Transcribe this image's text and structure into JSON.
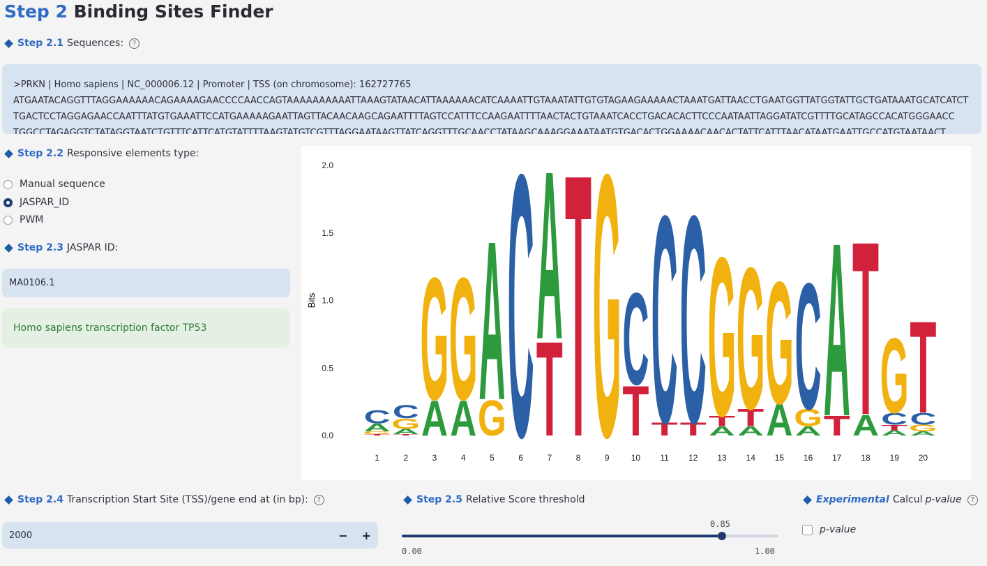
{
  "header": {
    "step": "Step 2",
    "title": "Binding Sites Finder"
  },
  "step21": {
    "step": "Step 2.1",
    "label": "Sequences:",
    "help": "?"
  },
  "sequence": {
    "line1": ">PRKN | Homo sapiens | NC_000006.12 | Promoter | TSS (on chromosome): 162727765",
    "line2": "ATGAATACAGGTTTAGGAAAAAACAGAAAAGAACCCCAACCAGTAAAAAAAAAATTAAAGTATAACATTAAAAAACATCAAAATTGTAAATATTGTGTAGAAGAAAAACTAAATGATTAACCTGAATGGTTATGGTATTGCTGATAAATGCATCATCT",
    "line3": "TGACTCCTAGGAGAACCAATTTATGTGAAATTCCATGAAAAAGAATTAGTTACAACAAGCAGAATTTTAGTCCATTTCCAAGAATTTTAACTACTGTAAATCACCTGACACACTTCCCAATAATTAGGATATCGTTTTGCATAGCCACATGGGAACC",
    "line4": "TGGCCTAGAGGTCTATAGGTAATCTGTTTCATTCATGTATTTTAAGTATGTCGTTTAGGAATAAGTTATCAGGTTTGCAACCTATAAGCAAAGGAAATAATGTGACACTGGAAAACAACACTATTCATTTAACATAATGAATTGCCATGTAATAACT"
  },
  "step22": {
    "step": "Step 2.2",
    "label": "Responsive elements type:",
    "options": [
      "Manual sequence",
      "JASPAR_ID",
      "PWM"
    ],
    "selected": "JASPAR_ID"
  },
  "step23": {
    "step": "Step 2.3",
    "label": "JASPAR ID:",
    "value": "MA0106.1",
    "info": "Homo sapiens transcription factor TP53"
  },
  "step24": {
    "step": "Step 2.4",
    "label": "Transcription Start Site (TSS)/gene end at (in bp):",
    "help": "?",
    "value": "2000",
    "minus": "−",
    "plus": "+"
  },
  "step25": {
    "step": "Step 2.5",
    "label": "Relative Score threshold",
    "value": "0.85",
    "min": "0.00",
    "max": "1.00",
    "fraction": 0.85
  },
  "experimental": {
    "step": "Experimental",
    "label_pre": "Calcul ",
    "label_em": "p-value",
    "help": "?",
    "checkbox_label": "p-value",
    "checked": false
  },
  "chart_data": {
    "type": "sequence-logo",
    "ylabel": "Bits",
    "ylim": [
      0,
      2.0
    ],
    "yticks": [
      "0.0",
      "0.5",
      "1.0",
      "1.5",
      "2.0"
    ],
    "colors": {
      "A": "#2e9a3e",
      "C": "#2b5fa6",
      "G": "#f1b20f",
      "T": "#d2213a"
    },
    "positions": [
      {
        "pos": "1",
        "letters": [
          [
            "T",
            0.01
          ],
          [
            "G",
            0.02
          ],
          [
            "A",
            0.06
          ],
          [
            "C",
            0.1
          ]
        ]
      },
      {
        "pos": "2",
        "letters": [
          [
            "T",
            0.01
          ],
          [
            "A",
            0.04
          ],
          [
            "G",
            0.08
          ],
          [
            "C",
            0.1
          ]
        ]
      },
      {
        "pos": "3",
        "letters": [
          [
            "A",
            0.27
          ],
          [
            "G",
            0.93
          ]
        ]
      },
      {
        "pos": "4",
        "letters": [
          [
            "A",
            0.27
          ],
          [
            "G",
            0.93
          ]
        ]
      },
      {
        "pos": "5",
        "letters": [
          [
            "G",
            0.27
          ],
          [
            "A",
            1.21
          ]
        ]
      },
      {
        "pos": "6",
        "letters": [
          [
            "C",
            2.0
          ]
        ]
      },
      {
        "pos": "7",
        "letters": [
          [
            "T",
            0.72
          ],
          [
            "A",
            1.28
          ]
        ]
      },
      {
        "pos": "8",
        "letters": [
          [
            "T",
            2.0
          ]
        ]
      },
      {
        "pos": "9",
        "letters": [
          [
            "G",
            2.0
          ]
        ]
      },
      {
        "pos": "10",
        "letters": [
          [
            "T",
            0.38
          ],
          [
            "C",
            0.7
          ]
        ]
      },
      {
        "pos": "11",
        "letters": [
          [
            "T",
            0.1
          ],
          [
            "C",
            1.58
          ]
        ]
      },
      {
        "pos": "12",
        "letters": [
          [
            "T",
            0.1
          ],
          [
            "C",
            1.58
          ]
        ]
      },
      {
        "pos": "13",
        "letters": [
          [
            "A",
            0.07
          ],
          [
            "T",
            0.08
          ],
          [
            "G",
            1.21
          ]
        ]
      },
      {
        "pos": "14",
        "letters": [
          [
            "A",
            0.07
          ],
          [
            "T",
            0.13
          ],
          [
            "G",
            1.08
          ]
        ]
      },
      {
        "pos": "15",
        "letters": [
          [
            "A",
            0.24
          ],
          [
            "G",
            0.93
          ]
        ]
      },
      {
        "pos": "16",
        "letters": [
          [
            "A",
            0.07
          ],
          [
            "G",
            0.13
          ],
          [
            "C",
            0.96
          ]
        ]
      },
      {
        "pos": "17",
        "letters": [
          [
            "T",
            0.15
          ],
          [
            "A",
            1.32
          ]
        ]
      },
      {
        "pos": "18",
        "letters": [
          [
            "A",
            0.16
          ],
          [
            "T",
            1.32
          ]
        ]
      },
      {
        "pos": "19",
        "letters": [
          [
            "A",
            0.04
          ],
          [
            "T",
            0.04
          ],
          [
            "C",
            0.09
          ],
          [
            "G",
            0.57
          ]
        ]
      },
      {
        "pos": "20",
        "letters": [
          [
            "A",
            0.03
          ],
          [
            "G",
            0.05
          ],
          [
            "C",
            0.09
          ],
          [
            "T",
            0.7
          ]
        ]
      }
    ]
  }
}
